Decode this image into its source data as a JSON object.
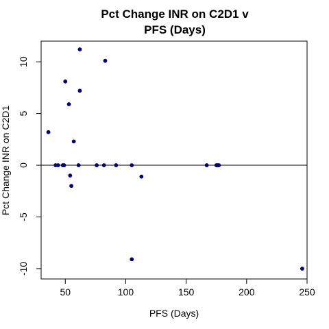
{
  "chart_data": {
    "type": "scatter",
    "title_line1": "Pct Change INR on C2D1 v",
    "title_line2": "PFS (Days)",
    "xlabel": "PFS (Days)",
    "ylabel": "Pct Change INR on C2D1",
    "xlim": [
      30,
      250
    ],
    "ylim": [
      -11,
      12
    ],
    "xticks": [
      50,
      100,
      150,
      200,
      250
    ],
    "yticks": [
      -10,
      -5,
      0,
      5,
      10
    ],
    "xtick_labels": [
      "50",
      "100",
      "150",
      "200",
      "250"
    ],
    "ytick_labels": [
      "-10",
      "-5",
      "0",
      "5",
      "10"
    ],
    "reference_line_y": 0,
    "point_color": "#00008B",
    "series": [
      {
        "x": [
          36,
          42,
          44,
          48,
          49,
          50,
          53,
          54,
          55,
          57,
          61,
          62,
          62,
          76,
          82,
          83,
          92,
          105,
          105,
          113,
          167,
          175,
          176,
          177,
          246
        ],
        "y": [
          3.2,
          0,
          0,
          0,
          0,
          8.1,
          5.9,
          -1.0,
          -2.0,
          2.3,
          0,
          11.2,
          7.2,
          0,
          0,
          10.1,
          0,
          0,
          -9.1,
          -1.1,
          0,
          0,
          0,
          0,
          -10.0
        ]
      }
    ]
  }
}
